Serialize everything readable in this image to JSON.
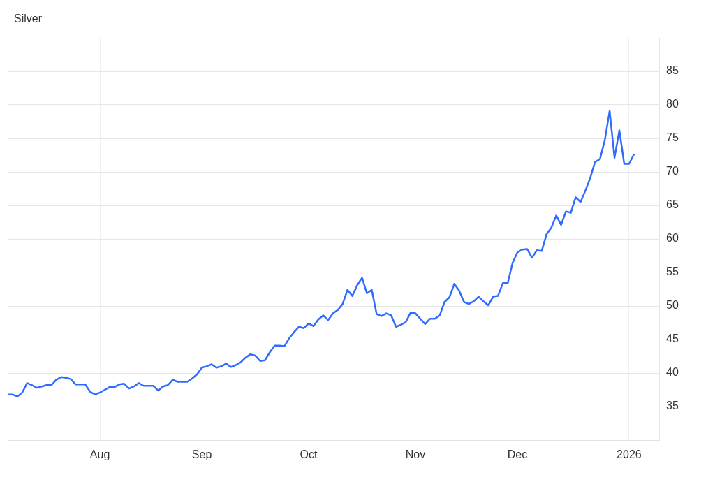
{
  "chart_data": {
    "type": "line",
    "title": "Silver",
    "categories": [
      null,
      null,
      null,
      null,
      null,
      null,
      null,
      null,
      null,
      null,
      null,
      null,
      null,
      null,
      null,
      null,
      null,
      null,
      null,
      "Aug",
      null,
      null,
      null,
      null,
      null,
      null,
      null,
      null,
      null,
      null,
      null,
      null,
      null,
      null,
      null,
      null,
      null,
      null,
      null,
      null,
      "Sep",
      null,
      null,
      null,
      null,
      null,
      null,
      null,
      null,
      null,
      null,
      null,
      null,
      null,
      null,
      null,
      null,
      null,
      null,
      null,
      null,
      null,
      "Oct",
      null,
      null,
      null,
      null,
      null,
      null,
      null,
      null,
      null,
      null,
      null,
      null,
      null,
      null,
      null,
      null,
      null,
      null,
      null,
      null,
      null,
      "Nov",
      null,
      null,
      null,
      null,
      null,
      null,
      null,
      null,
      null,
      null,
      null,
      null,
      null,
      null,
      null,
      null,
      null,
      null,
      null,
      null,
      "Dec",
      null,
      null,
      null,
      null,
      null,
      null,
      null,
      null,
      null,
      null,
      null,
      null,
      null,
      null,
      null,
      null,
      null,
      null,
      null,
      null,
      null,
      null,
      "2026",
      null
    ],
    "values": [
      36.8,
      36.8,
      36.5,
      37.1,
      38.5,
      38.2,
      37.8,
      38.0,
      38.2,
      38.2,
      39.0,
      39.4,
      39.3,
      39.1,
      38.3,
      38.3,
      38.3,
      37.2,
      36.8,
      37.1,
      37.5,
      37.9,
      37.9,
      38.3,
      38.4,
      37.7,
      38.0,
      38.5,
      38.1,
      38.1,
      38.1,
      37.4,
      38.0,
      38.2,
      39.0,
      38.7,
      38.7,
      38.7,
      39.2,
      39.8,
      40.8,
      41.0,
      41.3,
      40.8,
      41.0,
      41.4,
      40.9,
      41.2,
      41.6,
      42.3,
      42.8,
      42.6,
      41.8,
      41.9,
      43.1,
      44.1,
      44.1,
      44.0,
      45.2,
      46.1,
      46.9,
      46.7,
      47.4,
      47.0,
      48.0,
      48.6,
      47.9,
      48.9,
      49.4,
      50.3,
      52.4,
      51.5,
      53.1,
      54.2,
      51.9,
      52.4,
      48.8,
      48.5,
      48.9,
      48.6,
      46.9,
      47.2,
      47.6,
      49.0,
      48.9,
      48.1,
      47.3,
      48.1,
      48.1,
      48.6,
      50.6,
      51.3,
      53.3,
      52.3,
      50.6,
      50.3,
      50.7,
      51.4,
      50.7,
      50.1,
      51.4,
      51.5,
      53.4,
      53.4,
      56.4,
      58.0,
      58.4,
      58.5,
      57.2,
      58.3,
      58.2,
      60.7,
      61.7,
      63.5,
      62.1,
      64.1,
      63.9,
      66.2,
      65.5,
      67.2,
      69.1,
      71.5,
      71.9,
      74.7,
      79.1,
      72.1,
      76.2,
      71.2,
      71.2,
      72.6
    ],
    "color": "#2f6bff",
    "ylim": [
      30,
      90
    ],
    "yticks": [
      35,
      40,
      45,
      50,
      55,
      60,
      65,
      70,
      75,
      80,
      85,
      {
        "value": 90,
        "label": null
      }
    ],
    "grid": true,
    "marker": "none",
    "line_style": "solid"
  }
}
